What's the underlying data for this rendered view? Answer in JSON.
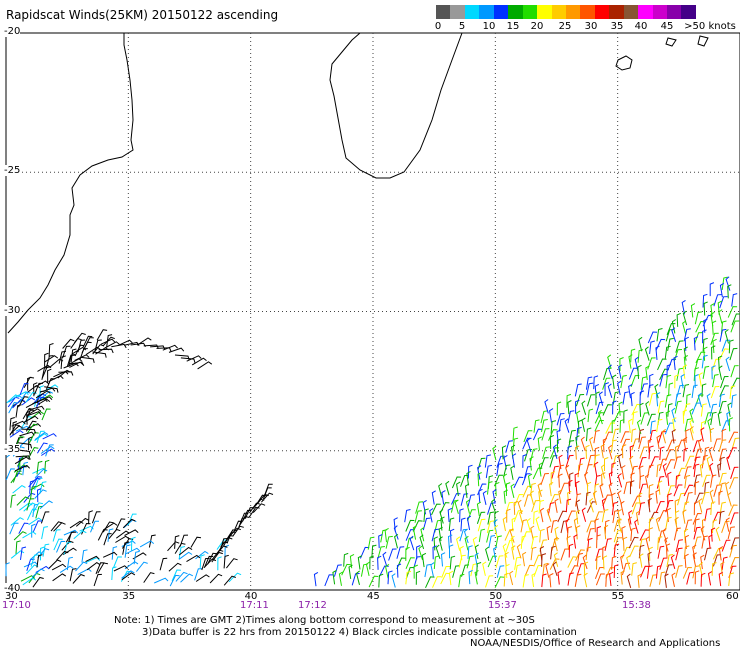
{
  "title": "Rapidscat Winds(25KM) 20150122 ascending",
  "colorbar": {
    "colors": [
      "#555555",
      "#999999",
      "#00d8ff",
      "#0099ff",
      "#0030ff",
      "#00aa00",
      "#22dd00",
      "#ffff00",
      "#ffcc00",
      "#ff9900",
      "#ff5500",
      "#ff0000",
      "#aa2200",
      "#885533",
      "#ff00ff",
      "#cc00cc",
      "#8800aa",
      "#440088"
    ],
    "labels": [
      "0",
      "5",
      "10",
      "15",
      "20",
      "25",
      "30",
      "35",
      "40",
      "45",
      ">50 knots"
    ]
  },
  "axes": {
    "lat_labels": [
      "-20",
      "-25",
      "-30",
      "-35",
      "-40"
    ],
    "lon_labels": [
      "30",
      "35",
      "40",
      "45",
      "50",
      "55",
      "60"
    ]
  },
  "times": [
    "17:10",
    "17:11",
    "17:12",
    "15:37",
    "15:38"
  ],
  "notes": [
    "Note: 1) Times are GMT 2)Times along bottom correspond to measurement at ~30S",
    "3)Data buffer is 22 hrs from 20150122 4) Black circles indicate possible contamination"
  ],
  "credit": "NOAA/NESDIS/Office of Research and Applications"
}
